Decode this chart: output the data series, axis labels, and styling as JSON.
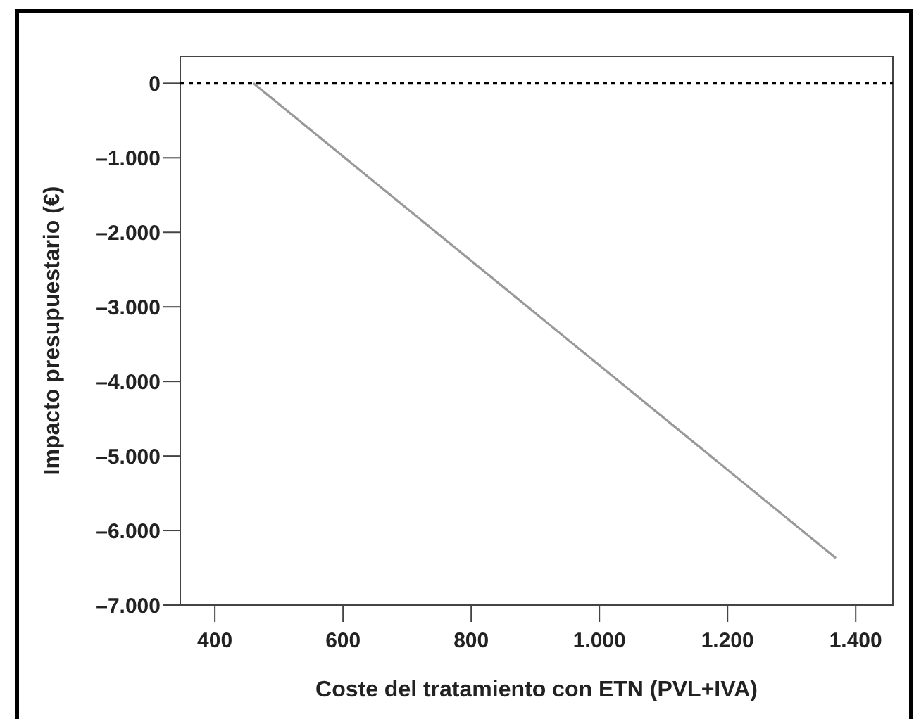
{
  "chart_data": {
    "type": "line",
    "xlabel": "Coste del tratamiento con ETN (PVL+IVA)",
    "ylabel": "Impacto presupuestario (€)",
    "x": [
      460,
      1369
    ],
    "series": [
      {
        "color": "#999999",
        "values": [
          0,
          -6370
        ]
      }
    ],
    "xlim": [
      346,
      1458
    ],
    "ylim": [
      -7000,
      362
    ],
    "xticks": [
      400,
      600,
      800,
      {
        "value": 1000,
        "label": "1.000"
      },
      {
        "value": 1200,
        "label": "1.200"
      },
      {
        "value": 1400,
        "label": "1.400"
      }
    ],
    "yticks": [
      0,
      {
        "value": -1000,
        "label": "–1.000"
      },
      {
        "value": -2000,
        "label": "–2.000"
      },
      {
        "value": -3000,
        "label": "–3.000"
      },
      {
        "value": -4000,
        "label": "–4.000"
      },
      {
        "value": -5000,
        "label": "–5.000"
      },
      {
        "value": -6000,
        "label": "–6.000"
      },
      {
        "value": -7000,
        "label": "–7.000"
      }
    ],
    "ref_lines": [
      {
        "axis": "y",
        "value": 0,
        "color": "#000000",
        "line_style": "dotted"
      }
    ],
    "grid": false,
    "marker": "none",
    "line_style": "solid"
  }
}
